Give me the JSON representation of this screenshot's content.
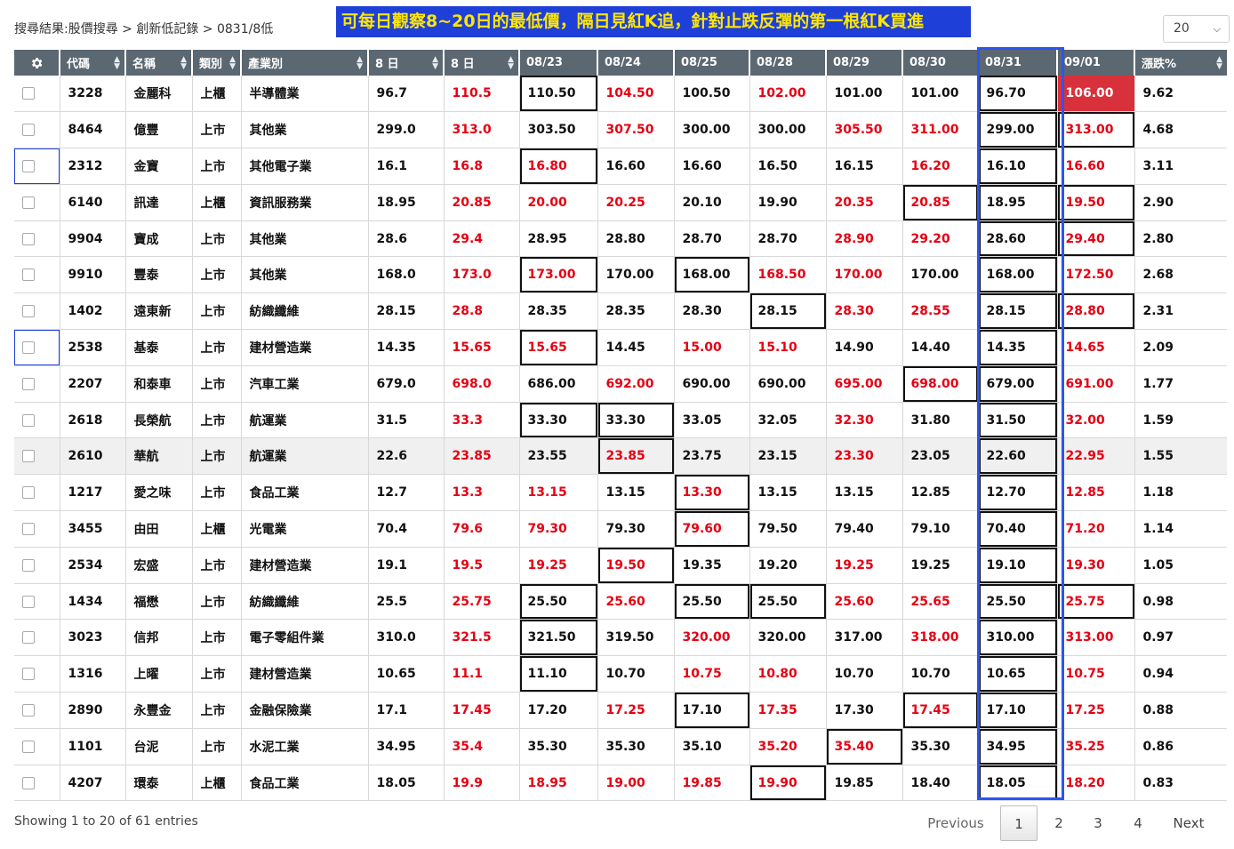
{
  "breadcrumb": "搜尋結果:股價搜尋 > 創新低記錄 > 0831/8低",
  "banner": "可每日觀察8~20日的最低價，隔日見紅K追，針對止跌反彈的第一根紅K買進",
  "page_size": {
    "value": "20",
    "icon": "chevron-down-icon"
  },
  "columns": {
    "settings_icon": "gear-icon",
    "code": "代碼",
    "name": "名稱",
    "type": "類別",
    "industry": "產業別",
    "low8": "8 日",
    "high8": "8 日",
    "d0823": "08/23",
    "d0824": "08/24",
    "d0825": "08/25",
    "d0828": "08/28",
    "d0829": "08/29",
    "d0830": "08/30",
    "d0831": "08/31",
    "d0901": "09/01",
    "pct": "漲跌%"
  },
  "colors": {
    "low_header": "#1e8e3e",
    "high_header": "#dc3545",
    "up_price": "#e60012",
    "highlight_box": "#2b55f0",
    "banner_bg": "#1e3fd8",
    "banner_text": "#ffe600"
  },
  "rows": [
    {
      "code": "3228",
      "name": "金麗科",
      "type": "上櫃",
      "industry": "半導體業",
      "low8": "96.7",
      "high8": "110.5",
      "days": [
        "110.50",
        "104.50",
        "100.50",
        "102.00",
        "101.00",
        "101.00",
        "96.70",
        "106.00"
      ],
      "pct": "9.62"
    },
    {
      "code": "8464",
      "name": "億豐",
      "type": "上市",
      "industry": "其他業",
      "low8": "299.0",
      "high8": "313.0",
      "days": [
        "303.50",
        "307.50",
        "300.00",
        "300.00",
        "305.50",
        "311.00",
        "299.00",
        "313.00"
      ],
      "pct": "4.68"
    },
    {
      "code": "2312",
      "name": "金寶",
      "type": "上市",
      "industry": "其他電子業",
      "low8": "16.1",
      "high8": "16.8",
      "days": [
        "16.80",
        "16.60",
        "16.60",
        "16.50",
        "16.15",
        "16.20",
        "16.10",
        "16.60"
      ],
      "pct": "3.11"
    },
    {
      "code": "6140",
      "name": "訊達",
      "type": "上櫃",
      "industry": "資訊服務業",
      "low8": "18.95",
      "high8": "20.85",
      "days": [
        "20.00",
        "20.25",
        "20.10",
        "19.90",
        "20.35",
        "20.85",
        "18.95",
        "19.50"
      ],
      "pct": "2.90"
    },
    {
      "code": "9904",
      "name": "寶成",
      "type": "上市",
      "industry": "其他業",
      "low8": "28.6",
      "high8": "29.4",
      "days": [
        "28.95",
        "28.80",
        "28.70",
        "28.70",
        "28.90",
        "29.20",
        "28.60",
        "29.40"
      ],
      "pct": "2.80"
    },
    {
      "code": "9910",
      "name": "豐泰",
      "type": "上市",
      "industry": "其他業",
      "low8": "168.0",
      "high8": "173.0",
      "days": [
        "173.00",
        "170.00",
        "168.00",
        "168.50",
        "170.00",
        "170.00",
        "168.00",
        "172.50"
      ],
      "pct": "2.68"
    },
    {
      "code": "1402",
      "name": "遠東新",
      "type": "上市",
      "industry": "紡織纖維",
      "low8": "28.15",
      "high8": "28.8",
      "days": [
        "28.35",
        "28.35",
        "28.30",
        "28.15",
        "28.30",
        "28.55",
        "28.15",
        "28.80"
      ],
      "pct": "2.31"
    },
    {
      "code": "2538",
      "name": "基泰",
      "type": "上市",
      "industry": "建材營造業",
      "low8": "14.35",
      "high8": "15.65",
      "days": [
        "15.65",
        "14.45",
        "15.00",
        "15.10",
        "14.90",
        "14.40",
        "14.35",
        "14.65"
      ],
      "pct": "2.09"
    },
    {
      "code": "2207",
      "name": "和泰車",
      "type": "上市",
      "industry": "汽車工業",
      "low8": "679.0",
      "high8": "698.0",
      "days": [
        "686.00",
        "692.00",
        "690.00",
        "690.00",
        "695.00",
        "698.00",
        "679.00",
        "691.00"
      ],
      "pct": "1.77"
    },
    {
      "code": "2618",
      "name": "長榮航",
      "type": "上市",
      "industry": "航運業",
      "low8": "31.5",
      "high8": "33.3",
      "days": [
        "33.30",
        "33.30",
        "33.05",
        "32.05",
        "32.30",
        "31.80",
        "31.50",
        "32.00"
      ],
      "pct": "1.59"
    },
    {
      "code": "2610",
      "name": "華航",
      "type": "上市",
      "industry": "航運業",
      "low8": "22.6",
      "high8": "23.85",
      "days": [
        "23.55",
        "23.85",
        "23.75",
        "23.15",
        "23.30",
        "23.05",
        "22.60",
        "22.95"
      ],
      "pct": "1.55"
    },
    {
      "code": "1217",
      "name": "愛之味",
      "type": "上市",
      "industry": "食品工業",
      "low8": "12.7",
      "high8": "13.3",
      "days": [
        "13.15",
        "13.15",
        "13.30",
        "13.15",
        "13.15",
        "12.85",
        "12.70",
        "12.85"
      ],
      "pct": "1.18"
    },
    {
      "code": "3455",
      "name": "由田",
      "type": "上櫃",
      "industry": "光電業",
      "low8": "70.4",
      "high8": "79.6",
      "days": [
        "79.30",
        "79.30",
        "79.60",
        "79.50",
        "79.40",
        "79.10",
        "70.40",
        "71.20"
      ],
      "pct": "1.14"
    },
    {
      "code": "2534",
      "name": "宏盛",
      "type": "上市",
      "industry": "建材營造業",
      "low8": "19.1",
      "high8": "19.5",
      "days": [
        "19.25",
        "19.50",
        "19.35",
        "19.20",
        "19.25",
        "19.25",
        "19.10",
        "19.30"
      ],
      "pct": "1.05"
    },
    {
      "code": "1434",
      "name": "福懋",
      "type": "上市",
      "industry": "紡織纖維",
      "low8": "25.5",
      "high8": "25.75",
      "days": [
        "25.50",
        "25.60",
        "25.50",
        "25.50",
        "25.60",
        "25.65",
        "25.50",
        "25.75"
      ],
      "pct": "0.98"
    },
    {
      "code": "3023",
      "name": "信邦",
      "type": "上市",
      "industry": "電子零組件業",
      "low8": "310.0",
      "high8": "321.5",
      "days": [
        "321.50",
        "319.50",
        "320.00",
        "320.00",
        "317.00",
        "318.00",
        "310.00",
        "313.00"
      ],
      "pct": "0.97"
    },
    {
      "code": "1316",
      "name": "上曜",
      "type": "上市",
      "industry": "建材營造業",
      "low8": "10.65",
      "high8": "11.1",
      "days": [
        "11.10",
        "10.70",
        "10.75",
        "10.80",
        "10.70",
        "10.70",
        "10.65",
        "10.75"
      ],
      "pct": "0.94"
    },
    {
      "code": "2890",
      "name": "永豐金",
      "type": "上市",
      "industry": "金融保險業",
      "low8": "17.1",
      "high8": "17.45",
      "days": [
        "17.20",
        "17.25",
        "17.10",
        "17.35",
        "17.30",
        "17.45",
        "17.10",
        "17.25"
      ],
      "pct": "0.88"
    },
    {
      "code": "1101",
      "name": "台泥",
      "type": "上市",
      "industry": "水泥工業",
      "low8": "34.95",
      "high8": "35.4",
      "days": [
        "35.30",
        "35.30",
        "35.10",
        "35.20",
        "35.40",
        "35.30",
        "34.95",
        "35.25"
      ],
      "pct": "0.86"
    },
    {
      "code": "4207",
      "name": "環泰",
      "type": "上櫃",
      "industry": "食品工業",
      "low8": "18.05",
      "high8": "19.9",
      "days": [
        "18.95",
        "19.00",
        "19.85",
        "19.90",
        "19.85",
        "18.40",
        "18.05",
        "18.20"
      ],
      "pct": "0.83"
    }
  ],
  "cell_styles": {
    "red": [
      [
        0,
        1,
        3,
        7
      ],
      [
        1,
        1,
        4,
        5,
        7
      ],
      [
        2,
        0,
        5,
        7
      ],
      [
        3,
        0,
        1,
        4,
        5,
        7
      ],
      [
        4,
        4,
        5,
        7
      ],
      [
        5,
        0,
        3,
        4,
        7
      ],
      [
        6,
        4,
        5,
        7
      ],
      [
        7,
        0,
        2,
        3,
        7
      ],
      [
        8,
        1,
        4,
        5,
        7
      ],
      [
        9,
        4,
        7
      ],
      [
        10,
        1,
        4,
        7
      ],
      [
        11,
        0,
        2,
        7
      ],
      [
        12,
        0,
        2,
        7
      ],
      [
        13,
        0,
        1,
        4,
        7
      ],
      [
        14,
        1,
        4,
        5,
        7
      ],
      [
        15,
        2,
        5,
        7
      ],
      [
        16,
        2,
        3,
        7
      ],
      [
        17,
        1,
        3,
        5,
        7
      ],
      [
        18,
        3,
        4,
        7
      ],
      [
        19,
        0,
        1,
        2,
        3,
        7
      ]
    ],
    "boxed": [
      [
        0,
        0,
        6
      ],
      [
        1,
        6,
        7
      ],
      [
        2,
        0,
        6
      ],
      [
        3,
        5,
        6,
        7
      ],
      [
        4,
        6,
        7
      ],
      [
        5,
        0,
        2,
        6
      ],
      [
        6,
        3,
        6,
        7
      ],
      [
        7,
        0,
        6
      ],
      [
        8,
        5,
        6
      ],
      [
        9,
        0,
        1,
        6
      ],
      [
        10,
        1,
        6
      ],
      [
        11,
        2,
        6
      ],
      [
        12,
        2,
        6
      ],
      [
        13,
        1,
        6
      ],
      [
        14,
        0,
        2,
        3,
        6,
        7
      ],
      [
        15,
        0,
        6
      ],
      [
        16,
        0,
        6
      ],
      [
        17,
        2,
        5,
        6
      ],
      [
        18,
        4,
        6
      ],
      [
        19,
        3,
        6
      ]
    ],
    "filled": [
      [
        0,
        7
      ]
    ],
    "highlighted_row": 10,
    "focused_rows": [
      2,
      7
    ]
  },
  "footer": {
    "info": "Showing 1 to 20 of 61 entries",
    "previous": "Previous",
    "pages": [
      "1",
      "2",
      "3",
      "4"
    ],
    "next": "Next"
  }
}
